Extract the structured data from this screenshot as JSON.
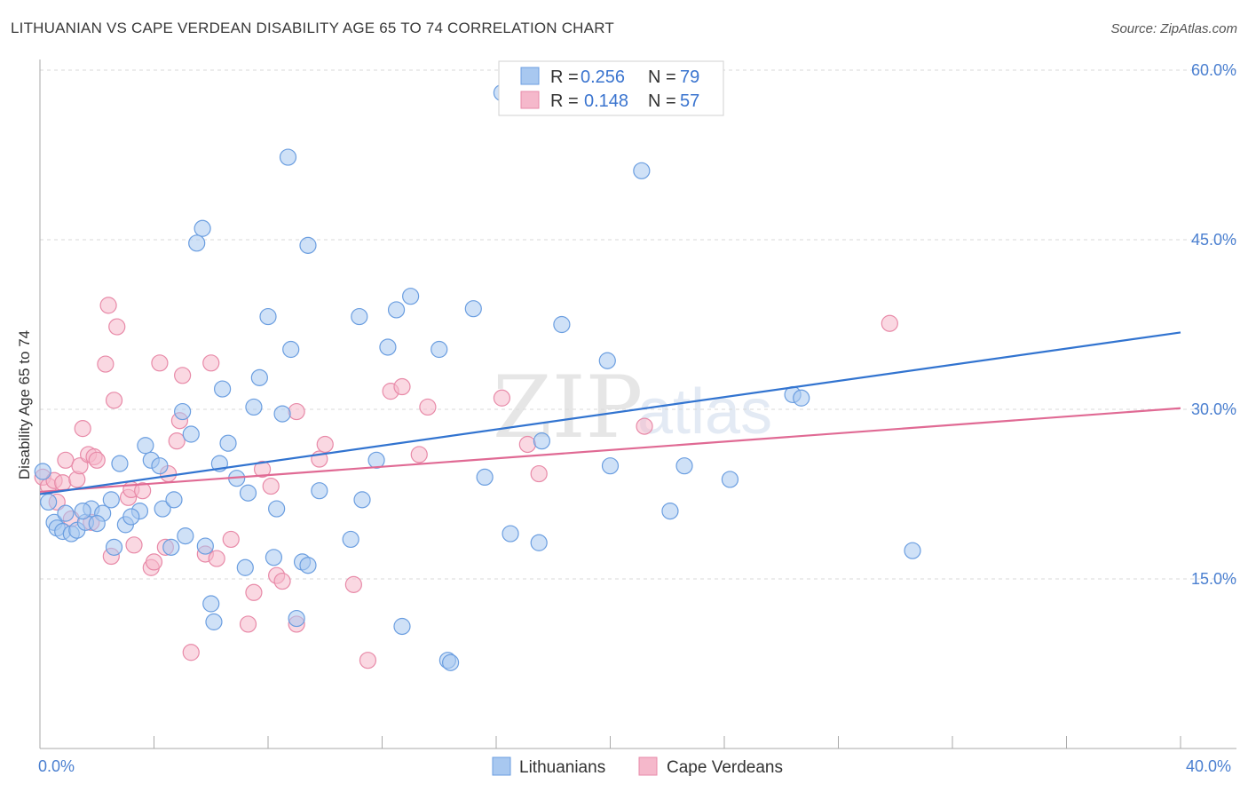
{
  "title": "LITHUANIAN VS CAPE VERDEAN DISABILITY AGE 65 TO 74 CORRELATION CHART",
  "source": "Source: ZipAtlas.com",
  "watermark": {
    "part1": "ZIP",
    "part2": "atlas"
  },
  "colors": {
    "blue_fill": "#a8c8f0",
    "blue_stroke": "#6b9ee0",
    "blue_line": "#3274d0",
    "pink_fill": "#f5b8cb",
    "pink_stroke": "#e88aa8",
    "pink_line": "#e06a94",
    "tick_text": "#4a7fd0",
    "grid": "#d9d9d9"
  },
  "legend": {
    "r_label": "R =",
    "n_label": "N =",
    "rows": [
      {
        "r": "0.256",
        "n": "79"
      },
      {
        "r": "0.148",
        "n": "57"
      }
    ]
  },
  "chart_data": {
    "type": "scatter",
    "title": "LITHUANIAN VS CAPE VERDEAN DISABILITY AGE 65 TO 74 CORRELATION CHART",
    "xlabel": "",
    "ylabel": "Disability Age 65 to 74",
    "xlim": [
      0,
      40
    ],
    "ylim": [
      0,
      60
    ],
    "x_tick_labels": [
      "0.0%",
      "40.0%"
    ],
    "y_ticks": [
      15,
      30,
      45,
      60
    ],
    "y_tick_labels": [
      "15.0%",
      "30.0%",
      "45.0%",
      "60.0%"
    ],
    "grid": true,
    "legend_position": "top-center",
    "series": [
      {
        "name": "Lithuanians",
        "r": 0.256,
        "n": 79,
        "trend": {
          "x": [
            0,
            40
          ],
          "y": [
            22.5,
            36.8
          ]
        },
        "points": [
          [
            0.1,
            24.5
          ],
          [
            0.3,
            21.8
          ],
          [
            0.5,
            20.0
          ],
          [
            0.6,
            19.5
          ],
          [
            0.8,
            19.2
          ],
          [
            1.1,
            19.0
          ],
          [
            1.3,
            19.3
          ],
          [
            0.9,
            20.8
          ],
          [
            1.6,
            20.0
          ],
          [
            1.8,
            21.2
          ],
          [
            2.2,
            20.8
          ],
          [
            2.0,
            19.9
          ],
          [
            2.5,
            22.0
          ],
          [
            2.8,
            25.2
          ],
          [
            3.0,
            19.8
          ],
          [
            2.6,
            17.8
          ],
          [
            3.5,
            21.0
          ],
          [
            3.7,
            26.8
          ],
          [
            3.9,
            25.5
          ],
          [
            4.2,
            25.0
          ],
          [
            4.3,
            21.2
          ],
          [
            4.7,
            22.0
          ],
          [
            5.0,
            29.8
          ],
          [
            5.1,
            18.8
          ],
          [
            5.3,
            27.8
          ],
          [
            5.8,
            17.9
          ],
          [
            6.0,
            12.8
          ],
          [
            6.1,
            11.2
          ],
          [
            6.3,
            25.2
          ],
          [
            6.4,
            31.8
          ],
          [
            6.6,
            27.0
          ],
          [
            6.9,
            23.9
          ],
          [
            7.2,
            16.0
          ],
          [
            7.3,
            22.6
          ],
          [
            7.5,
            30.2
          ],
          [
            7.7,
            32.8
          ],
          [
            8.0,
            38.2
          ],
          [
            8.2,
            16.9
          ],
          [
            8.3,
            21.2
          ],
          [
            8.5,
            29.6
          ],
          [
            8.8,
            35.3
          ],
          [
            9.0,
            11.5
          ],
          [
            9.2,
            16.5
          ],
          [
            9.4,
            16.2
          ],
          [
            9.8,
            22.8
          ],
          [
            9.4,
            44.5
          ],
          [
            8.7,
            52.3
          ],
          [
            5.7,
            46.0
          ],
          [
            5.5,
            44.7
          ],
          [
            10.9,
            18.5
          ],
          [
            11.2,
            38.2
          ],
          [
            11.3,
            22.0
          ],
          [
            11.8,
            25.5
          ],
          [
            12.2,
            35.5
          ],
          [
            12.5,
            38.8
          ],
          [
            12.7,
            10.8
          ],
          [
            13.0,
            40.0
          ],
          [
            14.0,
            35.3
          ],
          [
            14.3,
            7.8
          ],
          [
            15.2,
            38.9
          ],
          [
            15.6,
            24.0
          ],
          [
            16.2,
            58.0
          ],
          [
            16.5,
            19.0
          ],
          [
            17.5,
            18.2
          ],
          [
            17.6,
            27.2
          ],
          [
            18.3,
            37.5
          ],
          [
            19.9,
            34.3
          ],
          [
            20.0,
            25.0
          ],
          [
            21.1,
            51.1
          ],
          [
            22.1,
            21.0
          ],
          [
            22.6,
            25.0
          ],
          [
            24.2,
            23.8
          ],
          [
            26.4,
            31.3
          ],
          [
            26.7,
            31.0
          ],
          [
            30.6,
            17.5
          ],
          [
            14.4,
            7.6
          ],
          [
            4.6,
            17.8
          ],
          [
            3.2,
            20.5
          ],
          [
            1.5,
            21.0
          ]
        ]
      },
      {
        "name": "Cape Verdeans",
        "r": 0.148,
        "n": 57,
        "trend": {
          "x": [
            0,
            40
          ],
          "y": [
            22.7,
            30.1
          ]
        },
        "points": [
          [
            0.1,
            24.0
          ],
          [
            0.3,
            23.2
          ],
          [
            0.5,
            23.7
          ],
          [
            0.6,
            21.8
          ],
          [
            0.8,
            23.5
          ],
          [
            0.9,
            25.5
          ],
          [
            1.1,
            20.3
          ],
          [
            1.3,
            23.8
          ],
          [
            1.4,
            25.0
          ],
          [
            1.5,
            28.3
          ],
          [
            1.7,
            26.0
          ],
          [
            1.8,
            20.0
          ],
          [
            1.9,
            25.8
          ],
          [
            2.0,
            25.5
          ],
          [
            2.3,
            34.0
          ],
          [
            2.4,
            39.2
          ],
          [
            2.5,
            17.0
          ],
          [
            2.6,
            30.8
          ],
          [
            2.7,
            37.3
          ],
          [
            3.1,
            22.2
          ],
          [
            3.2,
            22.9
          ],
          [
            3.3,
            18.0
          ],
          [
            3.6,
            22.8
          ],
          [
            3.9,
            16.0
          ],
          [
            4.0,
            16.5
          ],
          [
            4.2,
            34.1
          ],
          [
            4.4,
            17.8
          ],
          [
            4.5,
            24.3
          ],
          [
            4.8,
            27.2
          ],
          [
            4.9,
            29.0
          ],
          [
            5.0,
            33.0
          ],
          [
            5.3,
            8.5
          ],
          [
            5.8,
            17.2
          ],
          [
            6.0,
            34.1
          ],
          [
            6.2,
            16.8
          ],
          [
            6.7,
            18.5
          ],
          [
            7.3,
            11.0
          ],
          [
            7.5,
            13.8
          ],
          [
            7.8,
            24.7
          ],
          [
            8.1,
            23.2
          ],
          [
            8.3,
            15.3
          ],
          [
            8.5,
            14.8
          ],
          [
            9.0,
            11.0
          ],
          [
            9.0,
            29.8
          ],
          [
            9.8,
            25.6
          ],
          [
            10.0,
            26.9
          ],
          [
            11.0,
            14.5
          ],
          [
            11.5,
            7.8
          ],
          [
            12.3,
            31.6
          ],
          [
            12.7,
            32.0
          ],
          [
            13.6,
            30.2
          ],
          [
            13.3,
            26.0
          ],
          [
            16.2,
            31.0
          ],
          [
            17.1,
            26.9
          ],
          [
            17.5,
            24.3
          ],
          [
            21.2,
            28.5
          ],
          [
            29.8,
            37.6
          ]
        ]
      }
    ]
  },
  "bottom_legend": [
    "Lithuanians",
    "Cape Verdeans"
  ]
}
